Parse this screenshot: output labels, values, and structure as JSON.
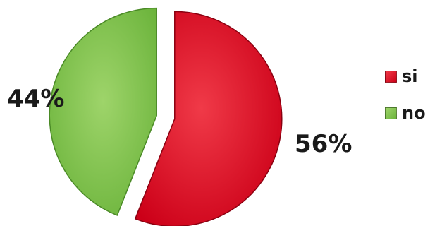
{
  "chart_data": {
    "type": "pie",
    "slices": [
      {
        "label": "si",
        "value": 56,
        "display": "56%",
        "color": "#cc0018",
        "highlight": "#f03a48",
        "edge": "#8a0010"
      },
      {
        "label": "no",
        "value": 44,
        "display": "44%",
        "color": "#6cb43c",
        "highlight": "#9ed46a",
        "edge": "#4a8a26"
      }
    ],
    "legend": "right",
    "exploded": true
  }
}
